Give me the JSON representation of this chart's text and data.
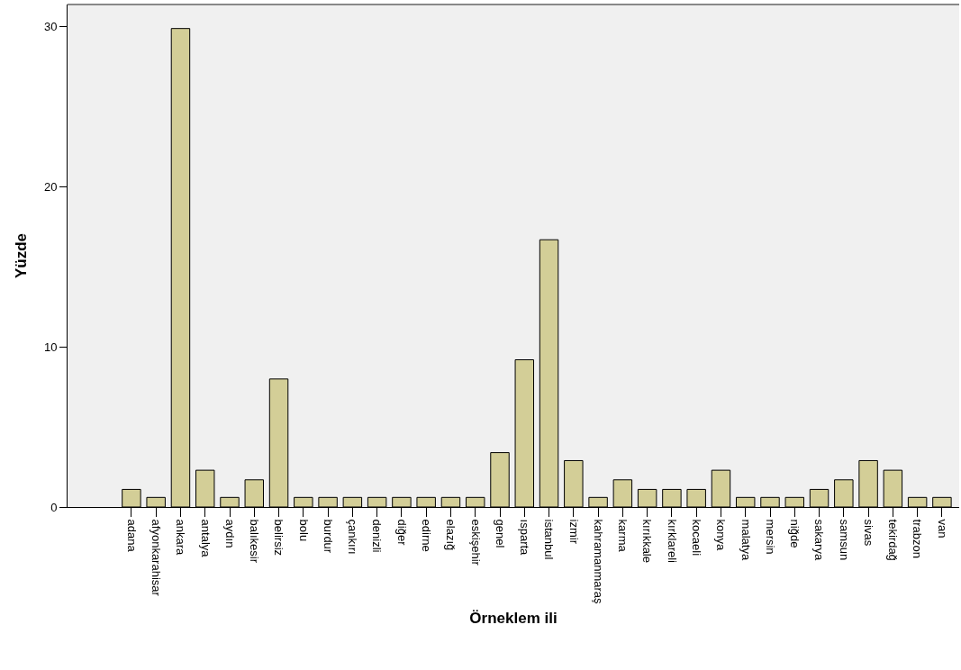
{
  "chart_data": {
    "type": "bar",
    "xlabel": "Örneklem ili",
    "ylabel": "Yüzde",
    "categories": [
      "adana",
      "afyonkarahisar",
      "ankara",
      "antalya",
      "aydın",
      "balıkesir",
      "belirsiz",
      "bolu",
      "burdur",
      "çankırı",
      "denizli",
      "diğer",
      "edirne",
      "elazığ",
      "eskişehir",
      "genel",
      "ısparta",
      "istanbul",
      "izmir",
      "kahramanmaraş",
      "karma",
      "kırıkkale",
      "kırklareli",
      "kocaeli",
      "konya",
      "malatya",
      "mersin",
      "niğde",
      "sakarya",
      "samsun",
      "sivas",
      "tekirdağ",
      "trabzon",
      "van"
    ],
    "values": [
      1.1,
      0.6,
      29.9,
      2.3,
      0.6,
      1.7,
      8.0,
      0.6,
      0.6,
      0.6,
      0.6,
      0.6,
      0.6,
      0.6,
      0.6,
      3.4,
      9.2,
      16.7,
      2.9,
      0.6,
      1.7,
      1.1,
      1.1,
      1.1,
      2.3,
      0.6,
      0.6,
      0.6,
      1.1,
      1.7,
      2.9,
      2.3,
      0.6,
      0.6
    ],
    "color": "#d3ce97",
    "ylim": [
      0,
      31.4
    ],
    "yticks": [
      0,
      10,
      20,
      30
    ]
  }
}
